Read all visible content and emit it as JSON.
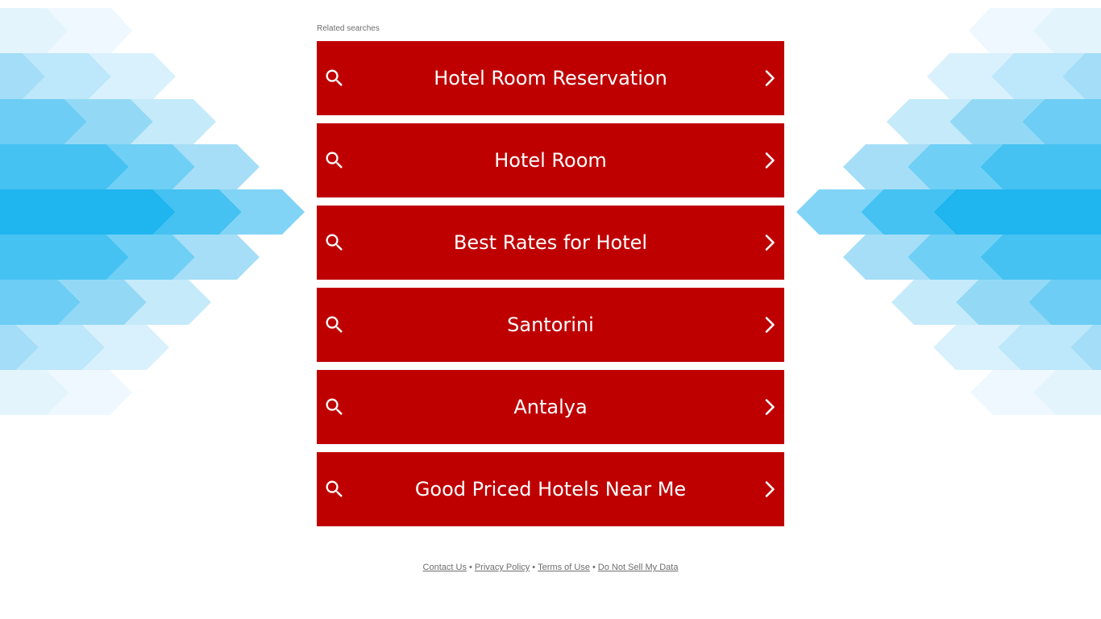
{
  "related_label": "Related searches",
  "results": [
    {
      "label": "Hotel Room Reservation"
    },
    {
      "label": "Hotel Room"
    },
    {
      "label": "Best Rates for Hotel"
    },
    {
      "label": "Santorini"
    },
    {
      "label": "Antalya"
    },
    {
      "label": "Good Priced Hotels Near Me"
    }
  ],
  "footer": {
    "contact": "Contact Us",
    "privacy": "Privacy Policy",
    "terms": "Terms of Use",
    "do_not_sell": "Do Not Sell My Data",
    "separator": "•"
  },
  "colors": {
    "button_bg": "#bf0000",
    "button_text": "#ffffff",
    "secondary_text": "#6e6e6e",
    "deco_light": "#edf8fe",
    "deco_dark": "#1fb5ef"
  },
  "icons": {
    "result_leading": "search-icon",
    "result_trailing": "chevron-right-icon"
  }
}
